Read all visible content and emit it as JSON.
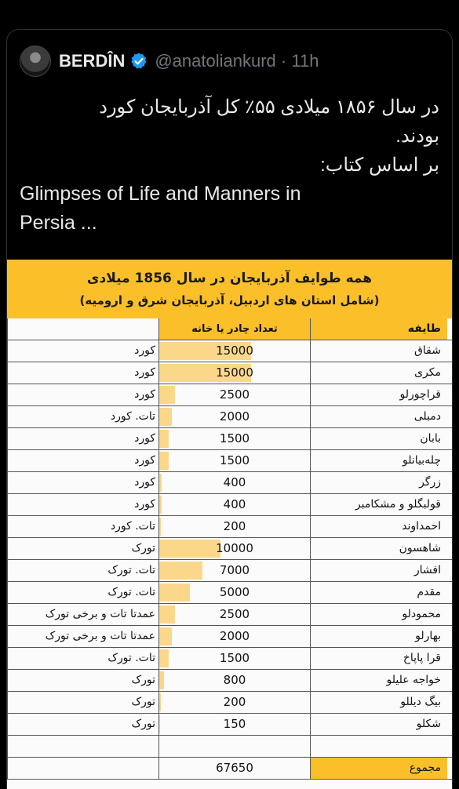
{
  "tweet": {
    "author_name": "BERDÎN",
    "handle": "@anatoliankurd",
    "separator": "·",
    "time": "11h",
    "lines": [
      "در سال ۱۸۵۶ میلادی ۵۵٪ کل آذربایجان کورد",
      "بودند.",
      "بر اساس کتاب:",
      "Glimpses of Life and Manners in",
      "Persia ..."
    ]
  },
  "table": {
    "title_line1": "همه طوایف آذربایجان در سال 1856 میلادی",
    "title_line2": "(شامل استان های اردبیل، آذربایجان شرق و ارومیه)",
    "headers": {
      "tribe": "طایفه",
      "count": "تعداد چادر یا خانه",
      "ethnicity": ""
    },
    "rows": [
      {
        "tribe": "شقاق",
        "count": "15000",
        "ethnicity": "کورد"
      },
      {
        "tribe": "مکری",
        "count": "15000",
        "ethnicity": "کورد"
      },
      {
        "tribe": "قراچورلو",
        "count": "2500",
        "ethnicity": "کورد"
      },
      {
        "tribe": "دمبلی",
        "count": "2000",
        "ethnicity": "تات. کورد"
      },
      {
        "tribe": "بابان",
        "count": "1500",
        "ethnicity": "کورد"
      },
      {
        "tribe": "چله‌بیانلو",
        "count": "1500",
        "ethnicity": "کورد"
      },
      {
        "tribe": "زرگر",
        "count": "400",
        "ethnicity": "کورد"
      },
      {
        "tribe": "قولبگلو و مشکامبر",
        "count": "400",
        "ethnicity": "کورد"
      },
      {
        "tribe": "احمداوند",
        "count": "200",
        "ethnicity": "تات. کورد"
      },
      {
        "tribe": "شاهسون",
        "count": "10000",
        "ethnicity": "تورک"
      },
      {
        "tribe": "افشار",
        "count": "7000",
        "ethnicity": "تات. تورک"
      },
      {
        "tribe": "مقدم",
        "count": "5000",
        "ethnicity": "تات. تورک"
      },
      {
        "tribe": "محمودلو",
        "count": "2500",
        "ethnicity": "عمدتا تات و برخی تورک"
      },
      {
        "tribe": "بهارلو",
        "count": "2000",
        "ethnicity": "عمدتا تات و برخی تورک"
      },
      {
        "tribe": "قرا پاپاخ",
        "count": "1500",
        "ethnicity": "تات. تورک"
      },
      {
        "tribe": "خواجه علیلو",
        "count": "800",
        "ethnicity": "تورک"
      },
      {
        "tribe": "بیگ دیللو",
        "count": "200",
        "ethnicity": "تورک"
      },
      {
        "tribe": "شکلو",
        "count": "150",
        "ethnicity": "تورک"
      },
      {
        "tribe": "",
        "count": "",
        "ethnicity": ""
      }
    ],
    "total": {
      "tribe": "مجموع",
      "count": "67650",
      "ethnicity": ""
    },
    "bar_max": 15000
  },
  "colors": {
    "background": "#000000",
    "table_accent": "#fbbf2a",
    "bar_fill": "#fbd78a",
    "verified_badge": "#1d9bf0",
    "handle_gray": "#71767b"
  },
  "icons": {
    "verified": "verified-badge-icon",
    "avatar": "avatar-image"
  }
}
